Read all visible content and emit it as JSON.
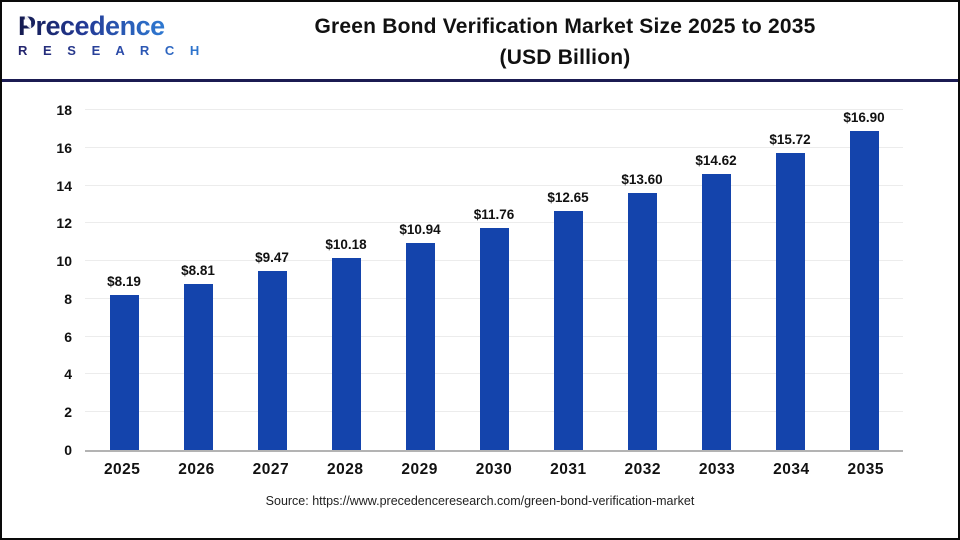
{
  "logo": {
    "brand": "Precedence",
    "sub": "R E S E A R C H"
  },
  "header": {
    "title_line1": "Green Bond Verification Market Size 2025 to 2035",
    "title_line2": "(USD Billion)"
  },
  "source_text": "Source: https://www.precedenceresearch.com/green-bond-verification-market",
  "colors": {
    "bar": "#1444ac",
    "header_rule": "#1b1b52",
    "grid": "#ececec",
    "baseline": "#b3b3b3",
    "logo_dark": "#141a4e",
    "logo_light": "#2f7ad2"
  },
  "chart_data": {
    "type": "bar",
    "title": "Green Bond Verification Market Size 2025 to 2035 (USD Billion)",
    "categories": [
      "2025",
      "2026",
      "2027",
      "2028",
      "2029",
      "2030",
      "2031",
      "2032",
      "2033",
      "2034",
      "2035"
    ],
    "values": [
      8.19,
      8.81,
      9.47,
      10.18,
      10.94,
      11.76,
      12.65,
      13.6,
      14.62,
      15.72,
      16.9
    ],
    "value_labels": [
      "$8.19",
      "$8.81",
      "$9.47",
      "$10.18",
      "$10.94",
      "$11.76",
      "$12.65",
      "$13.60",
      "$14.62",
      "$15.72",
      "$16.90"
    ],
    "xlabel": "",
    "ylabel": "",
    "ylim": [
      0,
      18
    ],
    "yticks": [
      0,
      2,
      4,
      6,
      8,
      10,
      12,
      14,
      16,
      18
    ],
    "grid": "horizontal",
    "legend": "none"
  }
}
